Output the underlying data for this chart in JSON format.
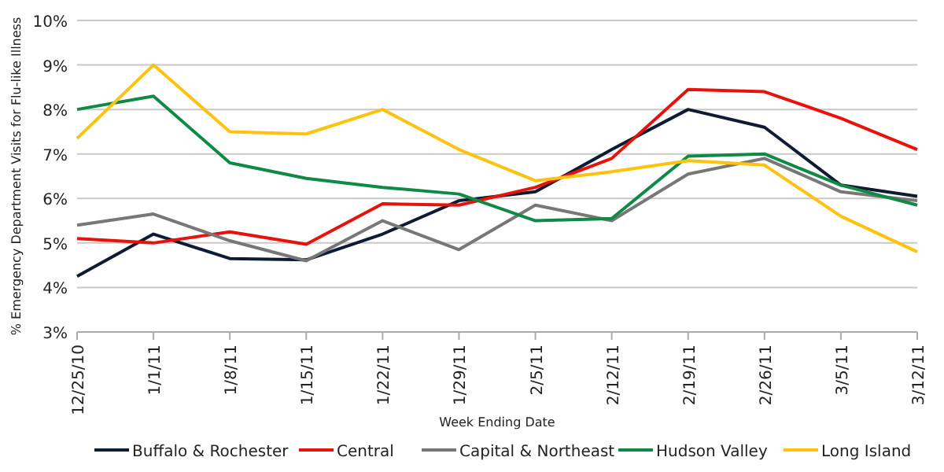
{
  "chart_data": {
    "type": "line",
    "xlabel": "Week Ending Date",
    "ylabel": "% Emergency  Department Visits for Flu-like Illness",
    "categories": [
      "12/25/10",
      "1/1/11",
      "1/8/11",
      "1/15/11",
      "1/22/11",
      "1/29/11",
      "2/5/11",
      "2/12/11",
      "2/19/11",
      "2/26/11",
      "3/5/11",
      "3/12/11"
    ],
    "series": [
      {
        "name": "Buffalo & Rochester",
        "color": "#0f1a33",
        "values": [
          4.25,
          5.2,
          4.65,
          4.62,
          5.2,
          5.95,
          6.15,
          7.1,
          8.0,
          7.6,
          6.3,
          6.05
        ]
      },
      {
        "name": "Central",
        "color": "#e8120c",
        "values": [
          5.1,
          5.0,
          5.25,
          4.97,
          5.88,
          5.85,
          6.25,
          6.9,
          8.45,
          8.4,
          7.8,
          7.1
        ]
      },
      {
        "name": "Capital & Northeast",
        "color": "#777777",
        "values": [
          5.4,
          5.65,
          5.05,
          4.6,
          5.5,
          4.85,
          5.85,
          5.5,
          6.55,
          6.9,
          6.15,
          5.95
        ]
      },
      {
        "name": "Hudson Valley",
        "color": "#0f8a45",
        "values": [
          8.0,
          8.3,
          6.8,
          6.45,
          6.25,
          6.1,
          5.5,
          5.55,
          6.95,
          7.0,
          6.3,
          5.85
        ]
      },
      {
        "name": "Long Island",
        "color": "#ffc20e",
        "values": [
          7.35,
          9.0,
          7.5,
          7.45,
          8.0,
          7.1,
          6.4,
          6.6,
          6.85,
          6.75,
          5.6,
          4.8
        ]
      }
    ],
    "ylim": [
      3,
      10
    ],
    "yticks": [
      {
        "value": 3,
        "label": "3%"
      },
      {
        "value": 4,
        "label": "4%"
      },
      {
        "value": 5,
        "label": "5%"
      },
      {
        "value": 6,
        "label": "6%"
      },
      {
        "value": 7,
        "label": "7%"
      },
      {
        "value": 8,
        "label": "8%"
      },
      {
        "value": 9,
        "label": "9%"
      },
      {
        "value": 10,
        "label": "10%"
      }
    ],
    "grid": "y",
    "legend": "bottom",
    "marker": "none",
    "line_style": "solid"
  }
}
